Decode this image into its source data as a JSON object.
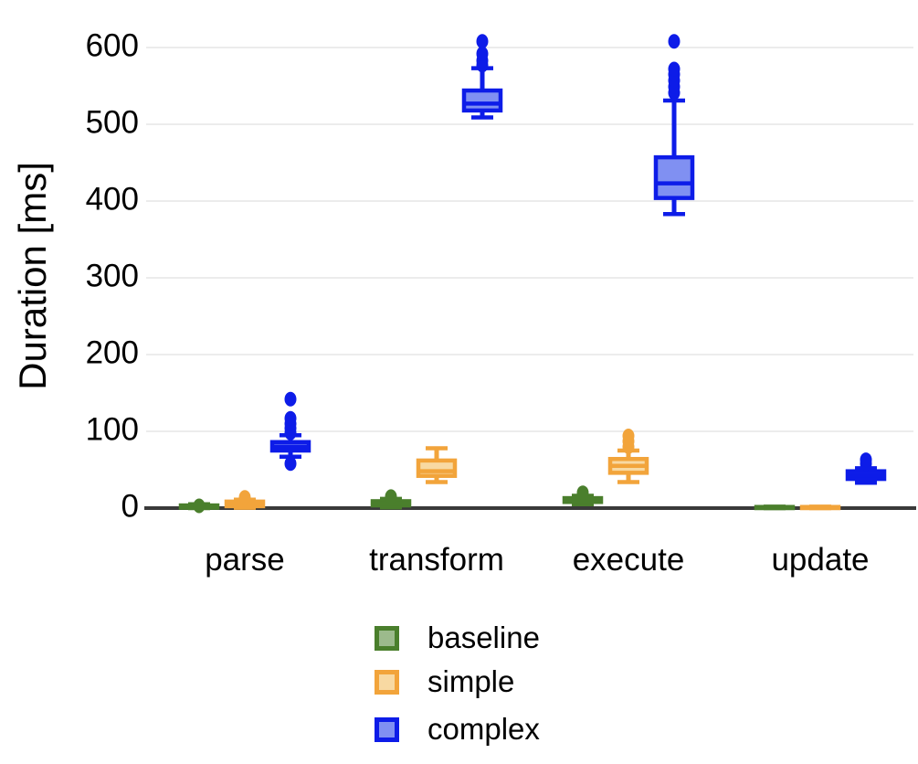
{
  "chart_data": {
    "type": "boxplot",
    "title": "",
    "xlabel": "",
    "ylabel": "Duration [ms]",
    "ylim": [
      0,
      620
    ],
    "grid": "horizontal",
    "legend_position": "bottom",
    "yticks": [
      0,
      100,
      200,
      300,
      400,
      500,
      600
    ],
    "categories": [
      "parse",
      "transform",
      "execute",
      "update"
    ],
    "series": [
      {
        "name": "baseline",
        "stroke": "#4a7f2c",
        "fill": "#9cba8c",
        "boxes": [
          {
            "category": "parse",
            "whisker_low": 0,
            "q1": 0.5,
            "median": 2,
            "q3": 3.5,
            "whisker_high": 5,
            "outliers": [
              3
            ]
          },
          {
            "category": "transform",
            "whisker_low": 1,
            "q1": 3.5,
            "median": 6,
            "q3": 9,
            "whisker_high": 12,
            "outliers": [
              15
            ]
          },
          {
            "category": "execute",
            "whisker_low": 5,
            "q1": 8,
            "median": 10,
            "q3": 13,
            "whisker_high": 16,
            "outliers": [
              20
            ]
          },
          {
            "category": "update",
            "whisker_low": 0,
            "q1": 0,
            "median": 0.7,
            "q3": 1.5,
            "whisker_high": 2,
            "outliers": []
          }
        ]
      },
      {
        "name": "simple",
        "stroke": "#f2a43b",
        "fill": "#f8d9a2",
        "boxes": [
          {
            "category": "parse",
            "whisker_low": 0.5,
            "q1": 2.5,
            "median": 5,
            "q3": 8.5,
            "whisker_high": 11,
            "outliers": [
              14
            ]
          },
          {
            "category": "transform",
            "whisker_low": 34,
            "q1": 42,
            "median": 48,
            "q3": 62,
            "whisker_high": 78,
            "outliers": []
          },
          {
            "category": "execute",
            "whisker_low": 34,
            "q1": 46,
            "median": 55,
            "q3": 64,
            "whisker_high": 75,
            "outliers": [
              80,
              87,
              94
            ]
          },
          {
            "category": "update",
            "whisker_low": 0,
            "q1": 0,
            "median": 0.7,
            "q3": 1.5,
            "whisker_high": 2,
            "outliers": []
          }
        ]
      },
      {
        "name": "complex",
        "stroke": "#0d1ce8",
        "fill": "#8090f2",
        "boxes": [
          {
            "category": "parse",
            "whisker_low": 67,
            "q1": 75,
            "median": 80,
            "q3": 86,
            "whisker_high": 95,
            "outliers": [
              58,
              98,
              104,
              110,
              117,
              142
            ]
          },
          {
            "category": "transform",
            "whisker_low": 509,
            "q1": 518,
            "median": 527,
            "q3": 544,
            "whisker_high": 573,
            "outliers": [
              577,
              583,
              592,
              608
            ]
          },
          {
            "category": "execute",
            "whisker_low": 383,
            "q1": 404,
            "median": 423,
            "q3": 457,
            "whisker_high": 531,
            "outliers": [
              541,
              549,
              557,
              565,
              572,
              608
            ]
          },
          {
            "category": "update",
            "whisker_low": 33,
            "q1": 38,
            "median": 43,
            "q3": 48,
            "whisker_high": 52,
            "outliers": [
              58,
              63
            ]
          }
        ]
      }
    ],
    "colors": {
      "gridline": "#ececec",
      "axis_line": "#3a3a3a",
      "text": "#000000",
      "background": "#ffffff"
    }
  }
}
